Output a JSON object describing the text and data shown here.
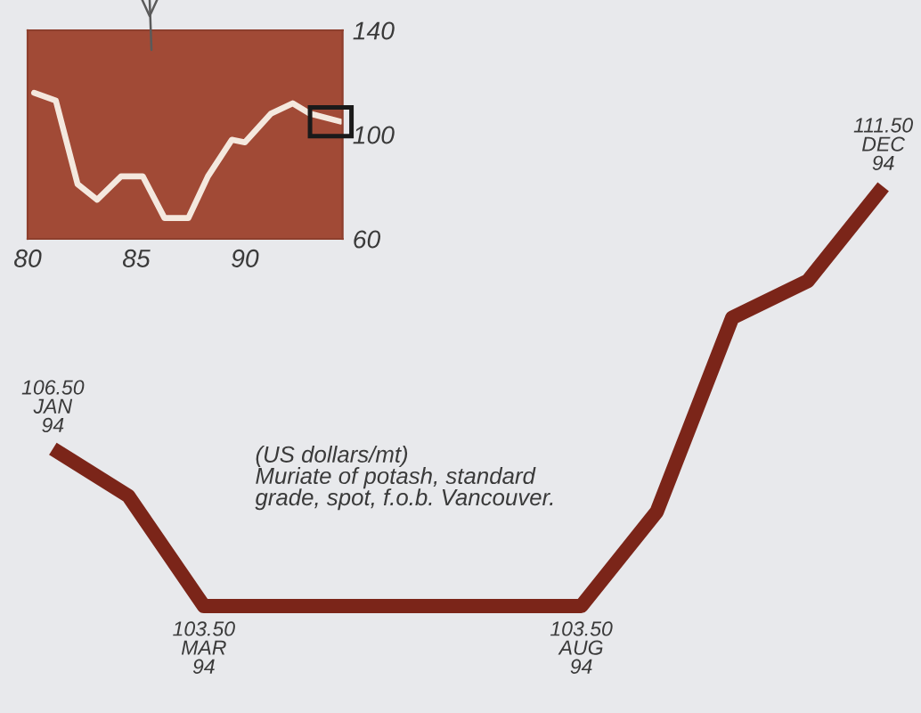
{
  "chart_data": [
    {
      "type": "line",
      "series": [
        {
          "color": "#f4e8de",
          "x": [
            80.3,
            81.3,
            82.3,
            83.2,
            84.3,
            85.3,
            86.3,
            87.4,
            88.3,
            89.4,
            90.0,
            91.2,
            92.2,
            93.0,
            94.4
          ],
          "values": [
            116,
            113,
            81,
            75,
            84,
            84,
            68,
            68,
            84,
            98,
            97,
            108,
            112,
            108,
            105
          ]
        }
      ],
      "xlim": [
        80,
        94.5
      ],
      "xticks": [
        80,
        85,
        90
      ],
      "ylim": [
        60,
        140
      ],
      "yticks": [
        60,
        100,
        140
      ]
    },
    {
      "type": "line",
      "categories": [
        "JAN\n94",
        null,
        "MAR\n94",
        null,
        null,
        null,
        null,
        "AUG\n94",
        null,
        null,
        null,
        "DEC\n94"
      ],
      "values": [
        106.5,
        105.6,
        103.5,
        103.5,
        103.5,
        103.5,
        103.5,
        103.5,
        105.3,
        109.0,
        109.7,
        111.5
      ],
      "color": "#7b2519",
      "value_labels": [
        "106.50",
        null,
        "103.50",
        null,
        null,
        null,
        null,
        "103.50",
        null,
        null,
        null,
        "111.50"
      ],
      "tick_labels": false,
      "annotations": [
        "(US dollars/mt)",
        "Muriate of potash, standard\ngrade, spot, f.o.b. Vancouver."
      ]
    }
  ]
}
